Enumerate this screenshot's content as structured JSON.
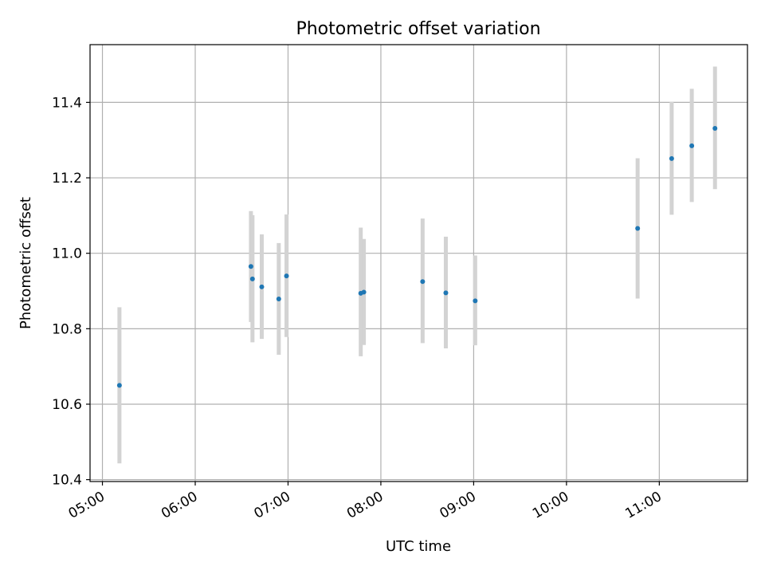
{
  "chart_data": {
    "type": "scatter",
    "title": "Photometric offset variation",
    "xlabel": "UTC time",
    "ylabel": "Photometric offset",
    "x_axis_kind": "time",
    "xlim": [
      "04:52",
      "11:57"
    ],
    "ylim": [
      10.395,
      11.553
    ],
    "xticks": [
      "05:00",
      "06:00",
      "07:00",
      "08:00",
      "09:00",
      "10:00",
      "11:00"
    ],
    "yticks": [
      10.4,
      10.6,
      10.8,
      11.0,
      11.2,
      11.4
    ],
    "grid": true,
    "legend": "none",
    "colors": {
      "points": "#1f77b4",
      "errorbars": "#d3d3d3",
      "grid": "#b0b0b0"
    },
    "series": [
      {
        "points": [
          {
            "x": "05:11",
            "y": 10.65,
            "err_low": 10.443,
            "err_high": 10.857
          },
          {
            "x": "06:36",
            "y": 10.965,
            "err_low": 10.818,
            "err_high": 11.112
          },
          {
            "x": "06:37",
            "y": 10.932,
            "err_low": 10.764,
            "err_high": 11.101
          },
          {
            "x": "06:43",
            "y": 10.911,
            "err_low": 10.773,
            "err_high": 11.05
          },
          {
            "x": "06:54",
            "y": 10.879,
            "err_low": 10.731,
            "err_high": 11.027
          },
          {
            "x": "06:59",
            "y": 10.94,
            "err_low": 10.778,
            "err_high": 11.103
          },
          {
            "x": "07:47",
            "y": 10.894,
            "err_low": 10.727,
            "err_high": 11.068
          },
          {
            "x": "07:49",
            "y": 10.897,
            "err_low": 10.757,
            "err_high": 11.038
          },
          {
            "x": "08:27",
            "y": 10.925,
            "err_low": 10.762,
            "err_high": 11.092
          },
          {
            "x": "08:42",
            "y": 10.895,
            "err_low": 10.748,
            "err_high": 11.044
          },
          {
            "x": "09:01",
            "y": 10.874,
            "err_low": 10.756,
            "err_high": 10.994
          },
          {
            "x": "10:46",
            "y": 11.066,
            "err_low": 10.88,
            "err_high": 11.252
          },
          {
            "x": "11:08",
            "y": 11.251,
            "err_low": 11.102,
            "err_high": 11.401
          },
          {
            "x": "11:21",
            "y": 11.285,
            "err_low": 11.136,
            "err_high": 11.436
          },
          {
            "x": "11:36",
            "y": 11.331,
            "err_low": 11.17,
            "err_high": 11.495
          }
        ]
      }
    ]
  }
}
